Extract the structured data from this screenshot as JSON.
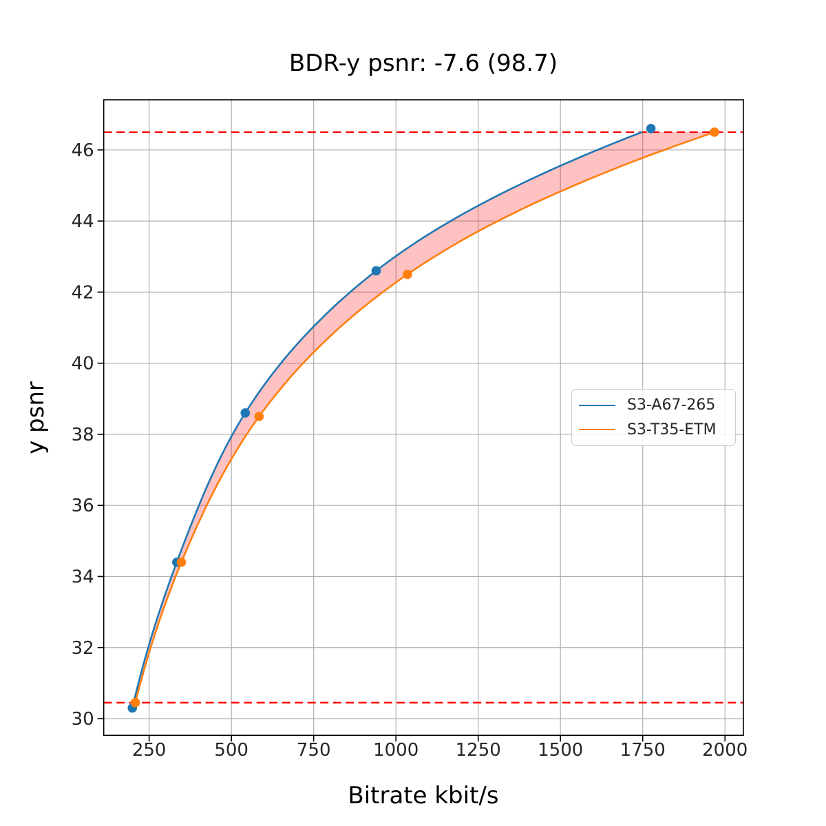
{
  "figure": {
    "title": "BDR-y psnr: -7.6 (98.7)",
    "xlabel": "Bitrate kbit/s",
    "ylabel": "y psnr"
  },
  "legend": {
    "items": [
      {
        "label": "S3-A67-265",
        "color": "#1f77b4"
      },
      {
        "label": "S3-T35-ETM",
        "color": "#ff7f0e"
      }
    ]
  },
  "chart_data": {
    "type": "line",
    "title": "BDR-y psnr: -7.6 (98.7)",
    "xlabel": "Bitrate kbit/s",
    "ylabel": "y psnr",
    "xlim": [
      112,
      2056
    ],
    "ylim": [
      29.53,
      47.41
    ],
    "xticks": [
      250,
      500,
      750,
      1000,
      1250,
      1500,
      1750,
      2000
    ],
    "yticks": [
      30,
      32,
      34,
      36,
      38,
      40,
      42,
      44,
      46
    ],
    "grid": true,
    "grid_color": "#b0b0b0",
    "legend_position": "right-center",
    "series": [
      {
        "name": "S3-A67-265",
        "color": "#1f77b4",
        "marker": "circle",
        "points": [
          [
            199,
            30.3
          ],
          [
            334,
            34.4
          ],
          [
            542,
            38.6
          ],
          [
            940,
            42.6
          ],
          [
            1775,
            46.6
          ]
        ]
      },
      {
        "name": "S3-T35-ETM",
        "color": "#ff7f0e",
        "marker": "circle",
        "points": [
          [
            208,
            30.45
          ],
          [
            348,
            34.4
          ],
          [
            584,
            38.5
          ],
          [
            1035,
            42.5
          ],
          [
            1968,
            46.5
          ]
        ]
      }
    ],
    "overlap_band": {
      "fill": "rgba(255,0,0,0.24)",
      "psnr_range": [
        30.45,
        46.5
      ]
    },
    "hlines": [
      {
        "y": 46.5,
        "color": "#ff0000",
        "style": "dashed"
      },
      {
        "y": 30.45,
        "color": "#ff0000",
        "style": "dashed"
      }
    ]
  }
}
